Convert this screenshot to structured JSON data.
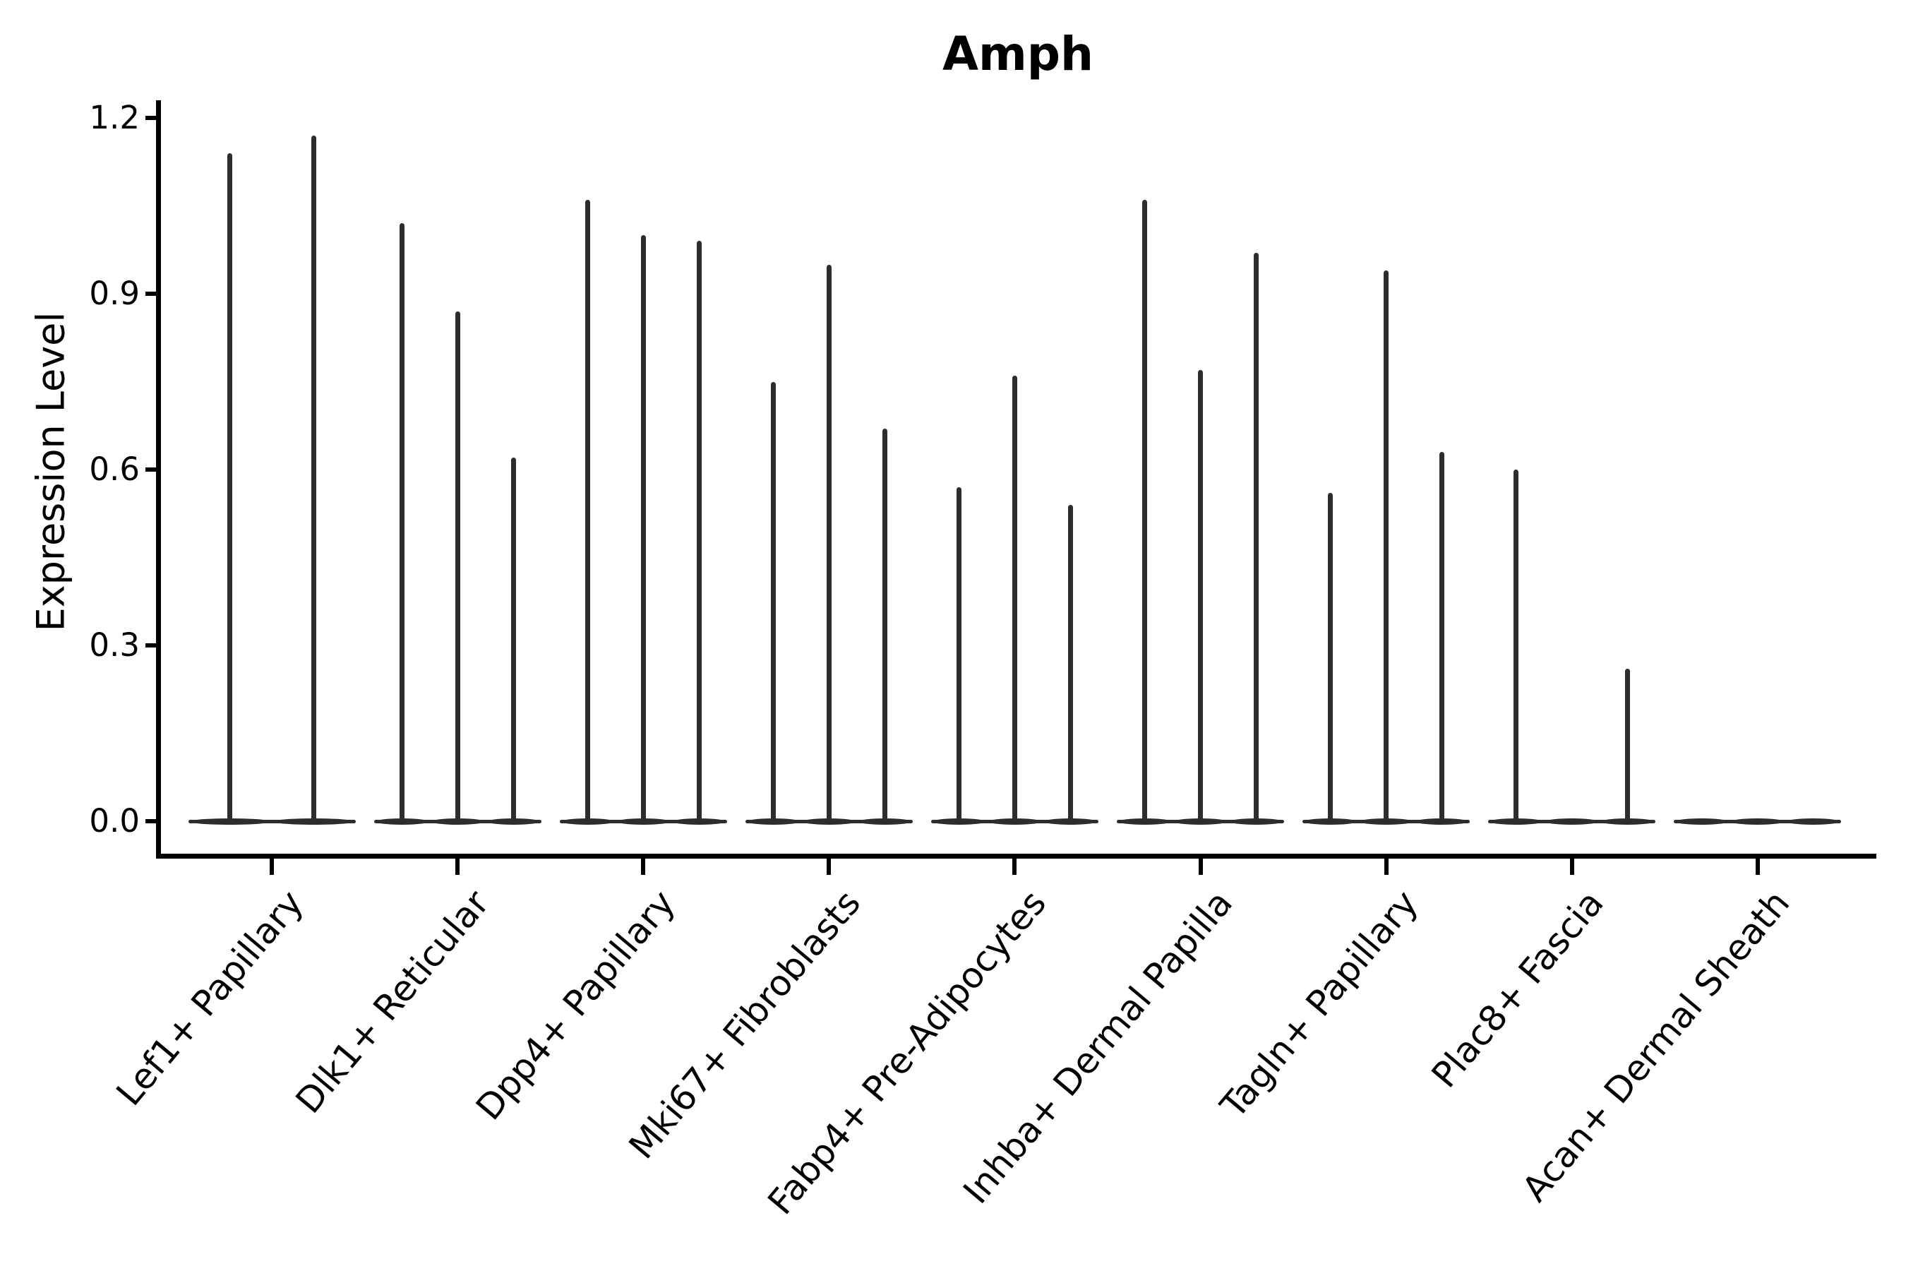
{
  "title": "Amph",
  "colors": {
    "ink": "#2d2d2d",
    "axis": "#000000",
    "background": "#ffffff"
  },
  "chart_data": {
    "type": "violin",
    "title": "Amph",
    "xlabel": "",
    "ylabel": "Expression Level",
    "ylim": [
      0,
      1.2
    ],
    "y_ticks": [
      {
        "label": "0.0",
        "value": 0.0
      },
      {
        "label": "0.3",
        "value": 0.3
      },
      {
        "label": "0.6",
        "value": 0.6
      },
      {
        "label": "0.9",
        "value": 0.9
      },
      {
        "label": "1.2",
        "value": 1.2
      }
    ],
    "grid": false,
    "legend": "none",
    "description": "Violin plot of gene expression; violins are extremely narrow spikes rising from a flat base at 0, one spike per violin reaching the listed maximum expression value.",
    "categories": [
      {
        "label": "Lef1+ Papillary",
        "violin_max_values": [
          1.14,
          1.17
        ]
      },
      {
        "label": "Dlk1+ Reticular",
        "violin_max_values": [
          1.02,
          0.87,
          0.62
        ]
      },
      {
        "label": "Dpp4+ Papillary",
        "violin_max_values": [
          1.06,
          1.0,
          0.99
        ]
      },
      {
        "label": "Mki67+ Fibroblasts",
        "violin_max_values": [
          0.75,
          0.95,
          0.67
        ]
      },
      {
        "label": "Fabp4+ Pre-Adipocytes",
        "violin_max_values": [
          0.57,
          0.76,
          0.54
        ]
      },
      {
        "label": "Inhba+ Dermal Papilla",
        "violin_max_values": [
          1.06,
          0.77,
          0.97
        ]
      },
      {
        "label": "Tagln+ Papillary",
        "violin_max_values": [
          0.56,
          0.94,
          0.63
        ]
      },
      {
        "label": "Plac8+ Fascia",
        "violin_max_values": [
          0.6,
          0.0,
          0.26
        ]
      },
      {
        "label": "Acan+ Dermal Sheath",
        "violin_max_values": [
          0.0,
          0.0,
          0.0
        ]
      }
    ]
  }
}
